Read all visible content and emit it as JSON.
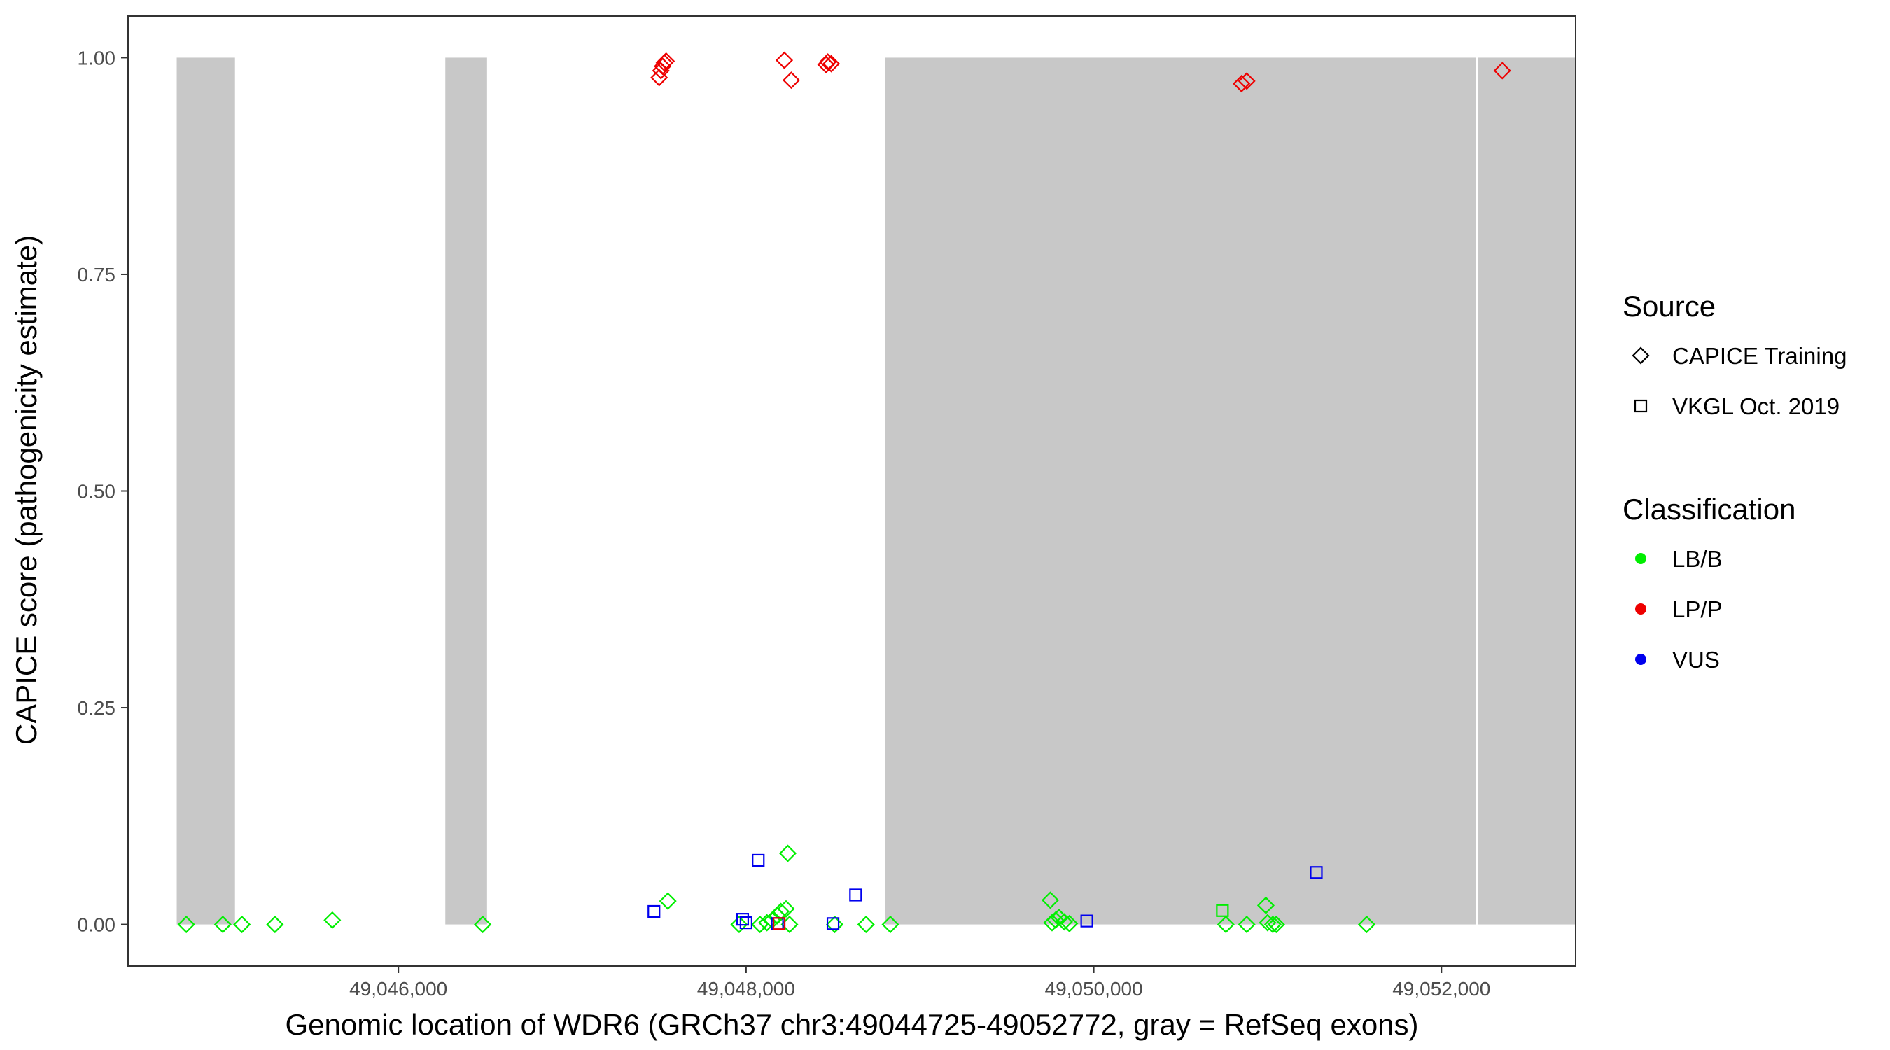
{
  "chart_data": {
    "type": "scatter",
    "title": "",
    "xlabel": "Genomic location of WDR6 (GRCh37 chr3:49044725-49052772, gray = RefSeq exons)",
    "ylabel": "CAPICE score (pathogenicity estimate)",
    "xlim": [
      44445,
      52772
    ],
    "ylim": [
      -0.048,
      1.048
    ],
    "x_ticks": [
      {
        "value": 46000,
        "label": "49,046,000"
      },
      {
        "value": 48000,
        "label": "49,048,000"
      },
      {
        "value": 50000,
        "label": "49,050,000"
      },
      {
        "value": 52000,
        "label": "49,052,000"
      }
    ],
    "y_ticks": [
      {
        "value": 0,
        "label": "0.00"
      },
      {
        "value": 0.25,
        "label": "0.25"
      },
      {
        "value": 0.5,
        "label": "0.50"
      },
      {
        "value": 0.75,
        "label": "0.75"
      },
      {
        "value": 1,
        "label": "1.00"
      }
    ],
    "x_offset_note_hidden": 49000000,
    "grid": false,
    "exons": [
      {
        "start": 44725,
        "end": 45060
      },
      {
        "start": 46270,
        "end": 46510
      },
      {
        "start": 48800,
        "end": 52200
      },
      {
        "start": 52210,
        "end": 52772
      }
    ],
    "legend_placement": "right",
    "legends": [
      {
        "title": "Source",
        "entries": [
          {
            "label": "CAPICE Training",
            "shape": "diamond"
          },
          {
            "label": "VKGL Oct. 2019",
            "shape": "square"
          }
        ]
      },
      {
        "title": "Classification",
        "entries": [
          {
            "label": "LB/B",
            "color": "#00ee00"
          },
          {
            "label": "LP/P",
            "color": "#ee0000"
          },
          {
            "label": "VUS",
            "color": "#0000ee"
          }
        ]
      }
    ],
    "class_colors": {
      "LB/B": "#00ee00",
      "LP/P": "#ee0000",
      "VUS": "#0000ee"
    },
    "series": [
      {
        "source": "CAPICE Training",
        "classification": "LP/P",
        "points": [
          [
            47500,
            0.977
          ],
          [
            47510,
            0.985
          ],
          [
            47520,
            0.99
          ],
          [
            47530,
            0.994
          ],
          [
            47540,
            0.996
          ],
          [
            48220,
            0.997
          ],
          [
            48260,
            0.974
          ],
          [
            48460,
            0.992
          ],
          [
            48470,
            0.995
          ],
          [
            48490,
            0.993
          ],
          [
            50850,
            0.97
          ],
          [
            50880,
            0.973
          ],
          [
            52350,
            0.985
          ]
        ]
      },
      {
        "source": "CAPICE Training",
        "classification": "LB/B",
        "points": [
          [
            44780,
            0
          ],
          [
            44990,
            0
          ],
          [
            45100,
            0
          ],
          [
            45290,
            0
          ],
          [
            45620,
            0.005
          ],
          [
            46485,
            0
          ],
          [
            47550,
            0.027
          ],
          [
            47960,
            0
          ],
          [
            48080,
            0
          ],
          [
            48120,
            0.002
          ],
          [
            48150,
            0.005
          ],
          [
            48180,
            0.01
          ],
          [
            48200,
            0.015
          ],
          [
            48230,
            0.018
          ],
          [
            48250,
            0
          ],
          [
            48240,
            0.082
          ],
          [
            48510,
            0
          ],
          [
            48690,
            0
          ],
          [
            48830,
            0
          ],
          [
            49750,
            0.028
          ],
          [
            49760,
            0.002
          ],
          [
            49780,
            0.005
          ],
          [
            49800,
            0.008
          ],
          [
            49830,
            0.003
          ],
          [
            49860,
            0.001
          ],
          [
            50760,
            0
          ],
          [
            50880,
            0
          ],
          [
            50990,
            0.022
          ],
          [
            51000,
            0.002
          ],
          [
            51030,
            0
          ],
          [
            51050,
            0
          ],
          [
            51570,
            0
          ]
        ]
      },
      {
        "source": "VKGL Oct. 2019",
        "classification": "LB/B",
        "points": [
          [
            50740,
            0.016
          ]
        ]
      },
      {
        "source": "VKGL Oct. 2019",
        "classification": "VUS",
        "points": [
          [
            47470,
            0.015
          ],
          [
            47980,
            0.006
          ],
          [
            48000,
            0.002
          ],
          [
            48070,
            0.074
          ],
          [
            48180,
            0.001
          ],
          [
            48500,
            0.001
          ],
          [
            48630,
            0.034
          ],
          [
            49960,
            0.004
          ],
          [
            51280,
            0.06
          ]
        ]
      },
      {
        "source": "VKGL Oct. 2019",
        "classification": "LP/P",
        "points": [
          [
            48190,
            0.001
          ]
        ]
      }
    ]
  }
}
